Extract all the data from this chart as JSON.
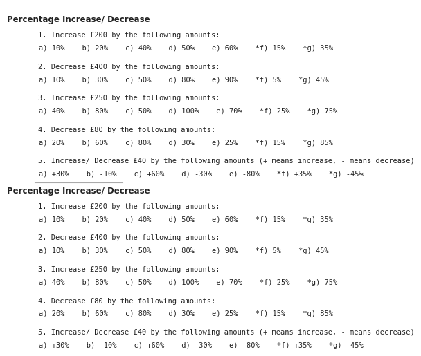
{
  "title": "Percentage Increase/ Decrease",
  "background_color": "#ffffff",
  "sections": [
    {
      "header": "1. Increase £200 by the following amounts:",
      "items": "a) 10%    b) 20%    c) 40%    d) 50%    e) 60%    *f) 15%    *g) 35%"
    },
    {
      "header": "2. Decrease £400 by the following amounts:",
      "items": "a) 10%    b) 30%    c) 50%    d) 80%    e) 90%    *f) 5%    *g) 45%"
    },
    {
      "header": "3. Increase £250 by the following amounts:",
      "items": "a) 40%    b) 80%    c) 50%    d) 100%    e) 70%    *f) 25%    *g) 75%"
    },
    {
      "header": "4. Decrease £80 by the following amounts:",
      "items": "a) 20%    b) 60%    c) 80%    d) 30%    e) 25%    *f) 15%    *g) 85%"
    },
    {
      "header": "5. Increase/ Decrease £40 by the following amounts (+ means increase, - means decrease)",
      "items": "a) +30%    b) -10%    c) +60%    d) -30%    e) -80%    *f) +35%    *g) -45%"
    }
  ],
  "title_fontsize": 8.5,
  "header_fontsize": 7.5,
  "items_fontsize": 7.5,
  "divider_color": "#aaaaaa",
  "text_color": "#222222"
}
